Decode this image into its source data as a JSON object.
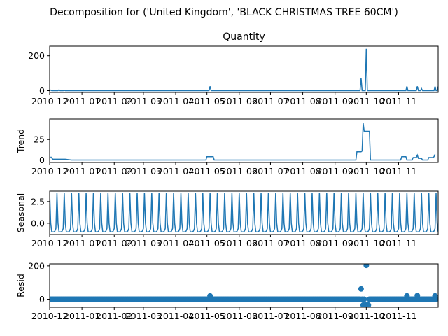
{
  "figure": {
    "suptitle": "Decomposition for ('United Kingdom', 'BLACK CHRISTMAS TREE 60CM')",
    "line_color": "#1f77b4"
  },
  "chart_data": [
    {
      "type": "line",
      "title": "Quantity",
      "ylabel": "",
      "x_range": [
        "2010-12-01",
        "2011-12-09"
      ],
      "xticks": [
        "2010-12",
        "2011-01",
        "2011-02",
        "2011-03",
        "2011-04",
        "2011-05",
        "2011-06",
        "2011-07",
        "2011-08",
        "2011-09",
        "2011-10",
        "2011-11"
      ],
      "ylim": [
        -10,
        255
      ],
      "yticks": [
        0,
        200
      ],
      "points": [
        [
          "2010-12-01",
          6
        ],
        [
          "2010-12-03",
          0
        ],
        [
          "2010-12-09",
          0
        ],
        [
          "2010-12-10",
          5
        ],
        [
          "2010-12-11",
          0
        ],
        [
          "2010-12-14",
          0
        ],
        [
          "2010-12-15",
          2
        ],
        [
          "2010-12-16",
          0
        ],
        [
          "2011-05-03",
          0
        ],
        [
          "2011-05-04",
          25
        ],
        [
          "2011-05-05",
          0
        ],
        [
          "2011-09-25",
          0
        ],
        [
          "2011-09-26",
          72
        ],
        [
          "2011-09-27",
          0
        ],
        [
          "2011-09-30",
          0
        ],
        [
          "2011-10-01",
          240
        ],
        [
          "2011-10-02",
          0
        ],
        [
          "2011-11-08",
          0
        ],
        [
          "2011-11-09",
          25
        ],
        [
          "2011-11-10",
          0
        ],
        [
          "2011-11-18",
          0
        ],
        [
          "2011-11-19",
          25
        ],
        [
          "2011-11-20",
          0
        ],
        [
          "2011-11-22",
          0
        ],
        [
          "2011-11-23",
          12
        ],
        [
          "2011-11-24",
          0
        ],
        [
          "2011-12-05",
          0
        ],
        [
          "2011-12-06",
          24
        ],
        [
          "2011-12-07",
          0
        ],
        [
          "2011-12-08",
          0
        ],
        [
          "2011-12-09",
          24
        ]
      ]
    },
    {
      "type": "line",
      "title": "",
      "ylabel": "Trend",
      "x_range": [
        "2010-12-01",
        "2011-12-09"
      ],
      "xticks": [
        "2010-12",
        "2011-01",
        "2011-02",
        "2011-03",
        "2011-04",
        "2011-05",
        "2011-06",
        "2011-07",
        "2011-08",
        "2011-09",
        "2011-10",
        "2011-11"
      ],
      "ylim": [
        -3,
        50
      ],
      "yticks": [
        0,
        25
      ],
      "points": [
        [
          "2010-12-02",
          4
        ],
        [
          "2010-12-04",
          1
        ],
        [
          "2010-12-16",
          1
        ],
        [
          "2010-12-22",
          0
        ],
        [
          "2011-04-30",
          0
        ],
        [
          "2011-05-01",
          4
        ],
        [
          "2011-05-07",
          4
        ],
        [
          "2011-05-08",
          0
        ],
        [
          "2011-09-21",
          0
        ],
        [
          "2011-09-22",
          10
        ],
        [
          "2011-09-26",
          10
        ],
        [
          "2011-09-27",
          11
        ],
        [
          "2011-09-28",
          45
        ],
        [
          "2011-09-29",
          35
        ],
        [
          "2011-10-04",
          35
        ],
        [
          "2011-10-05",
          0
        ],
        [
          "2011-11-03",
          0
        ],
        [
          "2011-11-04",
          4
        ],
        [
          "2011-11-08",
          4
        ],
        [
          "2011-11-09",
          0
        ],
        [
          "2011-11-14",
          0
        ],
        [
          "2011-11-15",
          3
        ],
        [
          "2011-11-18",
          3
        ],
        [
          "2011-11-19",
          6
        ],
        [
          "2011-11-20",
          2
        ],
        [
          "2011-11-23",
          2
        ],
        [
          "2011-11-24",
          0
        ],
        [
          "2011-11-29",
          0
        ],
        [
          "2011-11-30",
          3
        ],
        [
          "2011-12-04",
          3
        ],
        [
          "2011-12-05",
          4
        ],
        [
          "2011-12-06",
          7
        ]
      ]
    },
    {
      "type": "line",
      "title": "",
      "ylabel": "Seasonal",
      "x_range": [
        "2010-12-01",
        "2011-12-09"
      ],
      "xticks": [
        "2010-12",
        "2011-01",
        "2011-02",
        "2011-03",
        "2011-04",
        "2011-05",
        "2011-06",
        "2011-07",
        "2011-08",
        "2011-09",
        "2011-10",
        "2011-11"
      ],
      "ylim": [
        -1.3,
        3.7
      ],
      "yticks": [
        -0.0,
        2.5
      ],
      "ytick_labels": [
        "0.0",
        "2.5"
      ],
      "period": 7,
      "pattern": [
        3.5,
        0.0,
        -1.0,
        -1.0,
        -1.0,
        -0.9,
        -0.6
      ],
      "start": "2010-12-01",
      "end": "2011-12-09"
    },
    {
      "type": "scatter",
      "title": "",
      "ylabel": "Resid",
      "x_range": [
        "2010-12-01",
        "2011-12-09"
      ],
      "xticks": [
        "2010-12",
        "2011-01",
        "2011-02",
        "2011-03",
        "2011-04",
        "2011-05",
        "2011-06",
        "2011-07",
        "2011-08",
        "2011-09",
        "2011-10",
        "2011-11"
      ],
      "ylim": [
        -48,
        212
      ],
      "yticks": [
        0,
        200
      ],
      "baseline": 0,
      "start": "2010-12-02",
      "end": "2011-12-07",
      "outliers": [
        [
          "2011-05-04",
          20
        ],
        [
          "2011-09-26",
          62
        ],
        [
          "2011-09-28",
          -35
        ],
        [
          "2011-09-30",
          -35
        ],
        [
          "2011-10-01",
          203
        ],
        [
          "2011-10-02",
          -35
        ],
        [
          "2011-10-03",
          -35
        ],
        [
          "2011-11-09",
          20
        ],
        [
          "2011-11-19",
          22
        ],
        [
          "2011-12-06",
          20
        ]
      ]
    }
  ]
}
